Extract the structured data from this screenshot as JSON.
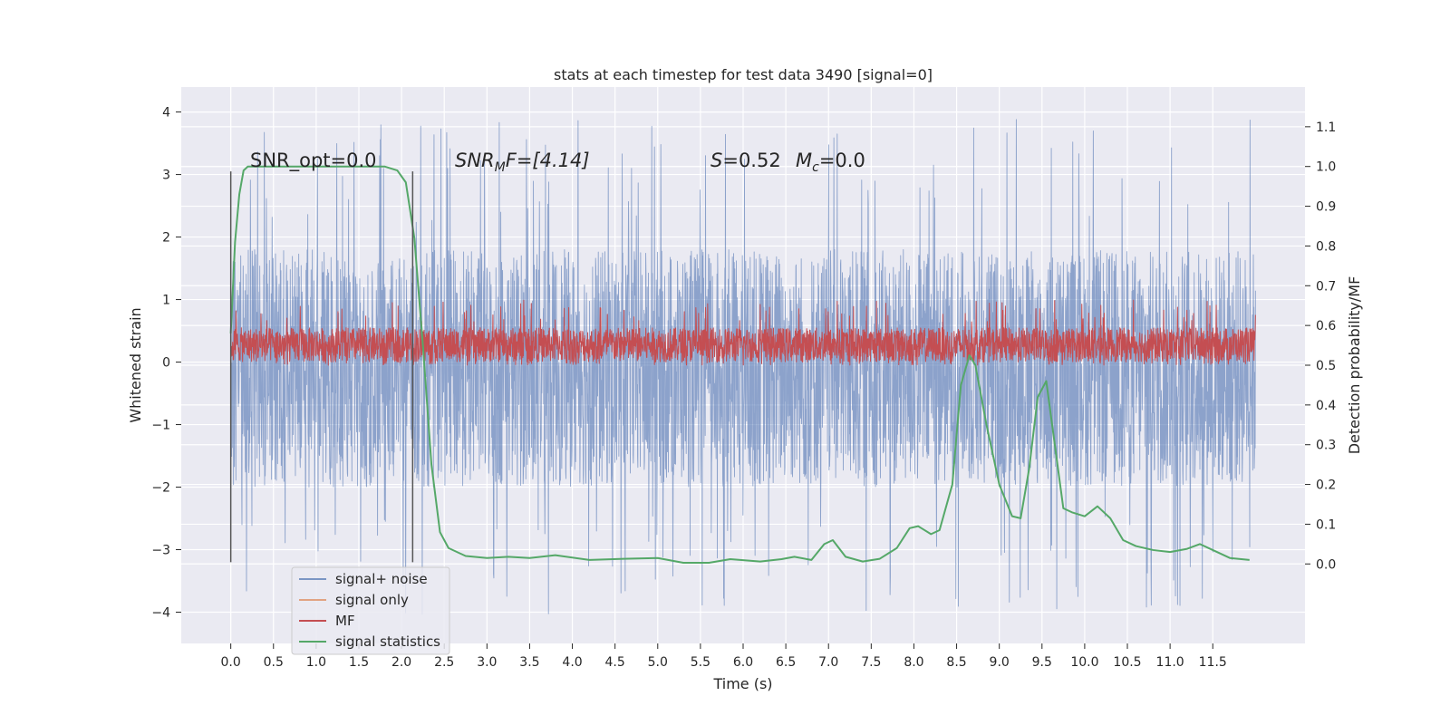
{
  "chart_data": {
    "type": "line",
    "title": "stats at each timestep for test data 3490 [signal=0]",
    "xlabel": "Time (s)",
    "ylabel": "Whitened strain",
    "ylabel_right": "Detection probability/MF",
    "xlim": [
      -0.58,
      12.58
    ],
    "ylim": [
      -4.5,
      4.4
    ],
    "ylim_right": [
      -0.2,
      1.2
    ],
    "xticks": [
      "0.0",
      "0.5",
      "1.0",
      "1.5",
      "2.0",
      "2.5",
      "3.0",
      "3.5",
      "4.0",
      "4.5",
      "5.0",
      "5.5",
      "6.0",
      "6.5",
      "7.0",
      "7.5",
      "8.0",
      "8.5",
      "9.0",
      "9.5",
      "10.0",
      "10.5",
      "11.0",
      "11.5"
    ],
    "yticks": [
      "4",
      "3",
      "2",
      "1",
      "0",
      "−1",
      "−2",
      "−3",
      "−4"
    ],
    "yticks_right": [
      "1.1",
      "1.0",
      "0.9",
      "0.8",
      "0.7",
      "0.6",
      "0.5",
      "0.4",
      "0.3",
      "0.2",
      "0.1",
      "0.0"
    ],
    "grid": true,
    "legend_position": "lower-left",
    "annotations": {
      "snr_opt": "SNR_opt=0.0",
      "snr_mf_prefix": "SNR",
      "snr_mf_sub": "M",
      "snr_mf_suffix": "F=[4.14]",
      "s_var": "S",
      "s_value": "=0.52",
      "mc_var": "M",
      "mc_sub": "c",
      "mc_value": "=0.0"
    },
    "vlines_x": [
      0.0,
      2.13
    ],
    "series": [
      {
        "name": "signal+ noise",
        "color": "#4c72b0",
        "alpha": 0.5,
        "kind": "noise",
        "x_range": [
          0.0,
          12.0
        ],
        "envelope": [
          -2.0,
          1.8
        ],
        "peak_range": [
          -4.1,
          3.9
        ]
      },
      {
        "name": "signal only",
        "color": "#dd8452",
        "alpha": 0.5,
        "kind": "flat",
        "value": 0.0
      },
      {
        "name": "MF",
        "color": "#c44e52",
        "kind": "noise",
        "x_range": [
          0.0,
          12.0
        ],
        "envelope": [
          0.0,
          0.55
        ],
        "peak_range": [
          -0.05,
          1.0
        ]
      },
      {
        "name": "signal statistics",
        "color": "#55a868",
        "axis": "right",
        "x": [
          0.0,
          0.05,
          0.1,
          0.15,
          0.2,
          0.3,
          0.5,
          1.0,
          1.5,
          1.8,
          1.95,
          2.05,
          2.15,
          2.25,
          2.35,
          2.45,
          2.55,
          2.75,
          3.0,
          3.25,
          3.5,
          3.8,
          4.2,
          4.6,
          5.0,
          5.3,
          5.6,
          5.85,
          6.2,
          6.45,
          6.6,
          6.8,
          6.95,
          7.05,
          7.2,
          7.4,
          7.6,
          7.8,
          7.95,
          8.05,
          8.2,
          8.3,
          8.45,
          8.55,
          8.65,
          8.72,
          8.85,
          9.0,
          9.15,
          9.25,
          9.35,
          9.45,
          9.55,
          9.65,
          9.75,
          9.85,
          10.0,
          10.15,
          10.3,
          10.45,
          10.6,
          10.8,
          11.0,
          11.2,
          11.35,
          11.5,
          11.7,
          11.93
        ],
        "y": [
          0.58,
          0.81,
          0.93,
          0.99,
          1.0,
          1.0,
          1.0,
          1.0,
          1.0,
          1.0,
          0.99,
          0.96,
          0.82,
          0.55,
          0.25,
          0.08,
          0.04,
          0.02,
          0.015,
          0.018,
          0.015,
          0.022,
          0.01,
          0.013,
          0.015,
          0.003,
          0.003,
          0.012,
          0.006,
          0.012,
          0.018,
          0.01,
          0.05,
          0.06,
          0.018,
          0.006,
          0.013,
          0.04,
          0.09,
          0.095,
          0.075,
          0.085,
          0.2,
          0.45,
          0.525,
          0.5,
          0.35,
          0.2,
          0.12,
          0.115,
          0.24,
          0.42,
          0.46,
          0.3,
          0.14,
          0.13,
          0.12,
          0.145,
          0.115,
          0.06,
          0.045,
          0.035,
          0.03,
          0.038,
          0.05,
          0.035,
          0.015,
          0.01
        ]
      }
    ]
  }
}
